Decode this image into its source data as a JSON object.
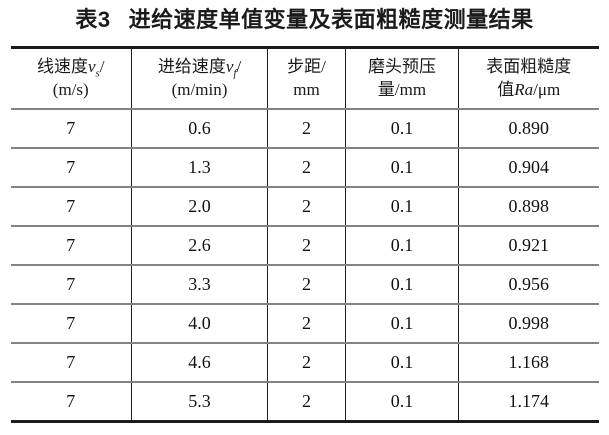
{
  "page": {
    "background": "#ffffff",
    "text_color": "#1a1a1a",
    "thick_border_color": "#1c1c1c",
    "row_line_color": "#838383"
  },
  "title": {
    "label": "表3",
    "text": "进给速度单值变量及表面粗糙度测量结果"
  },
  "table": {
    "columns": [
      {
        "l1pre": "线速度",
        "l1var": "v",
        "l1sub": "s",
        "l1post": "/",
        "l2pre": "(m/s)"
      },
      {
        "l1pre": "进给速度",
        "l1var": "v",
        "l1sub": "f",
        "l1post": "/",
        "l2pre": "(m/min)"
      },
      {
        "l1pre": "步距/",
        "l2pre": "mm"
      },
      {
        "l1pre": "磨头预压",
        "l2pre": "量/mm"
      },
      {
        "l1pre": "表面粗糙度",
        "l2pre": "值",
        "l2var": "Ra",
        "l2post": "/μm"
      }
    ],
    "rows": [
      [
        "7",
        "0.6",
        "2",
        "0.1",
        "0.890"
      ],
      [
        "7",
        "1.3",
        "2",
        "0.1",
        "0.904"
      ],
      [
        "7",
        "2.0",
        "2",
        "0.1",
        "0.898"
      ],
      [
        "7",
        "2.6",
        "2",
        "0.1",
        "0.921"
      ],
      [
        "7",
        "3.3",
        "2",
        "0.1",
        "0.956"
      ],
      [
        "7",
        "4.0",
        "2",
        "0.1",
        "0.998"
      ],
      [
        "7",
        "4.6",
        "2",
        "0.1",
        "1.168"
      ],
      [
        "7",
        "5.3",
        "2",
        "0.1",
        "1.174"
      ]
    ]
  }
}
